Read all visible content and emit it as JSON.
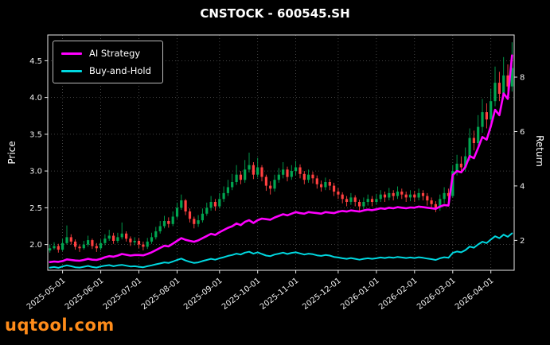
{
  "title": "CNSTOCK - 600545.SH",
  "watermark": "uqtool.com",
  "chart_data": {
    "type": "candlestick+line",
    "title": "CNSTOCK - 600545.SH",
    "background": "#000000",
    "legend_position": "upper-left",
    "axes": {
      "left_label": "Price",
      "right_label": "Return",
      "left_ylim": [
        1.65,
        4.85
      ],
      "right_ylim": [
        0.9,
        9.55
      ],
      "left_tick_values": [
        2.0,
        2.5,
        3.0,
        3.5,
        4.0,
        4.5
      ],
      "left_tick_labels": [
        "2.0",
        "2.5",
        "3.0",
        "3.5",
        "4.0",
        "4.5"
      ],
      "right_tick_values": [
        2,
        4,
        6,
        8
      ],
      "right_tick_labels": [
        "2",
        "4",
        "6",
        "8"
      ],
      "x_tick_labels": [
        "2025-05-01",
        "2025-06-01",
        "2025-07-01",
        "2025-08-01",
        "2025-09-01",
        "2025-10-01",
        "2025-11-01",
        "2025-12-01",
        "2026-01-01",
        "2026-02-01",
        "2026-03-01",
        "2026-04-01"
      ],
      "x_tick_indices": [
        3,
        12,
        21,
        30,
        40,
        49,
        58,
        68,
        77,
        86,
        95,
        104
      ],
      "grid": true
    },
    "n": 110,
    "candles": {
      "up_color": "#00a651",
      "down_color": "#ff4040",
      "open_rule": "previous_close",
      "first_open": 1.92,
      "closes": [
        1.95,
        1.98,
        1.93,
        2.02,
        2.1,
        2.04,
        1.97,
        1.95,
        2.0,
        2.06,
        1.98,
        1.95,
        2.02,
        2.08,
        2.12,
        2.05,
        2.1,
        2.15,
        2.08,
        2.03,
        2.05,
        2.0,
        1.97,
        2.04,
        2.1,
        2.18,
        2.25,
        2.32,
        2.28,
        2.38,
        2.5,
        2.6,
        2.45,
        2.35,
        2.28,
        2.33,
        2.42,
        2.5,
        2.58,
        2.52,
        2.62,
        2.7,
        2.78,
        2.85,
        2.95,
        2.88,
        3.02,
        3.08,
        2.95,
        3.05,
        2.92,
        2.8,
        2.76,
        2.88,
        2.95,
        3.02,
        2.92,
        3.0,
        3.05,
        2.96,
        2.88,
        2.95,
        2.9,
        2.82,
        2.78,
        2.85,
        2.8,
        2.72,
        2.68,
        2.62,
        2.58,
        2.64,
        2.58,
        2.52,
        2.58,
        2.62,
        2.58,
        2.62,
        2.68,
        2.64,
        2.7,
        2.66,
        2.72,
        2.68,
        2.64,
        2.68,
        2.64,
        2.7,
        2.66,
        2.6,
        2.55,
        2.5,
        2.62,
        2.7,
        2.66,
        3.0,
        3.1,
        3.05,
        3.2,
        3.45,
        3.38,
        3.6,
        3.8,
        3.7,
        3.95,
        4.2,
        4.05,
        4.3,
        4.15,
        4.4
      ],
      "highs": [
        2.0,
        2.03,
        2.01,
        2.08,
        2.26,
        2.14,
        2.07,
        2.0,
        2.05,
        2.12,
        2.08,
        2.02,
        2.07,
        2.14,
        2.2,
        2.16,
        2.16,
        2.3,
        2.18,
        2.11,
        2.1,
        2.09,
        2.04,
        2.09,
        2.16,
        2.24,
        2.32,
        2.39,
        2.37,
        2.45,
        2.57,
        2.68,
        2.62,
        2.49,
        2.38,
        2.4,
        2.49,
        2.57,
        2.66,
        2.62,
        2.7,
        2.79,
        2.88,
        2.96,
        3.08,
        3.0,
        3.15,
        3.25,
        3.12,
        3.18,
        3.08,
        2.95,
        2.86,
        2.95,
        3.04,
        3.12,
        3.06,
        3.08,
        3.14,
        3.09,
        3.0,
        3.02,
        2.99,
        2.94,
        2.87,
        2.91,
        2.89,
        2.84,
        2.77,
        2.71,
        2.66,
        2.7,
        2.67,
        2.61,
        2.64,
        2.68,
        2.66,
        2.69,
        2.74,
        2.72,
        2.77,
        2.74,
        2.79,
        2.76,
        2.72,
        2.74,
        2.73,
        2.76,
        2.74,
        2.7,
        2.64,
        2.59,
        2.68,
        2.78,
        2.76,
        3.08,
        3.22,
        3.2,
        3.32,
        3.58,
        3.55,
        3.76,
        3.98,
        3.92,
        4.12,
        4.42,
        4.35,
        4.55,
        4.45,
        4.75
      ],
      "lows": [
        1.89,
        1.93,
        1.89,
        1.91,
        2.0,
        2.0,
        1.93,
        1.9,
        1.93,
        1.97,
        1.94,
        1.9,
        1.92,
        1.99,
        2.05,
        2.01,
        2.02,
        2.07,
        2.04,
        1.98,
        1.99,
        1.95,
        1.92,
        1.94,
        2.01,
        2.07,
        2.15,
        2.22,
        2.23,
        2.25,
        2.35,
        2.47,
        2.4,
        2.3,
        2.22,
        2.24,
        2.3,
        2.39,
        2.46,
        2.46,
        2.49,
        2.58,
        2.66,
        2.74,
        2.81,
        2.82,
        2.84,
        2.98,
        2.89,
        2.91,
        2.86,
        2.73,
        2.68,
        2.72,
        2.84,
        2.9,
        2.86,
        2.88,
        2.94,
        2.9,
        2.82,
        2.84,
        2.83,
        2.76,
        2.72,
        2.74,
        2.74,
        2.66,
        2.62,
        2.56,
        2.52,
        2.54,
        2.52,
        2.46,
        2.48,
        2.53,
        2.52,
        2.54,
        2.58,
        2.58,
        2.6,
        2.6,
        2.62,
        2.62,
        2.58,
        2.59,
        2.58,
        2.6,
        2.6,
        2.53,
        2.48,
        2.44,
        2.46,
        2.56,
        2.6,
        2.64,
        2.94,
        2.97,
        2.99,
        3.14,
        3.28,
        3.32,
        3.52,
        3.58,
        3.62,
        3.88,
        3.95,
        3.98,
        4.02,
        4.08
      ]
    },
    "series": [
      {
        "name": "AI Strategy",
        "axis": "right",
        "color": "#ff00ff",
        "width": 2.6,
        "values": [
          1.2,
          1.22,
          1.21,
          1.24,
          1.3,
          1.28,
          1.26,
          1.25,
          1.28,
          1.32,
          1.29,
          1.28,
          1.32,
          1.38,
          1.42,
          1.4,
          1.44,
          1.5,
          1.47,
          1.44,
          1.46,
          1.46,
          1.45,
          1.5,
          1.56,
          1.64,
          1.72,
          1.8,
          1.78,
          1.88,
          1.98,
          2.08,
          2.02,
          1.98,
          1.95,
          2.0,
          2.08,
          2.16,
          2.24,
          2.2,
          2.3,
          2.38,
          2.46,
          2.52,
          2.62,
          2.56,
          2.68,
          2.74,
          2.64,
          2.74,
          2.8,
          2.78,
          2.76,
          2.84,
          2.9,
          2.96,
          2.92,
          2.98,
          3.04,
          3.0,
          2.98,
          3.04,
          3.02,
          3.0,
          2.98,
          3.04,
          3.02,
          3.0,
          3.05,
          3.08,
          3.06,
          3.1,
          3.08,
          3.06,
          3.1,
          3.13,
          3.11,
          3.14,
          3.18,
          3.16,
          3.2,
          3.18,
          3.22,
          3.2,
          3.18,
          3.21,
          3.2,
          3.24,
          3.22,
          3.2,
          3.18,
          3.16,
          3.24,
          3.3,
          3.28,
          4.4,
          4.55,
          4.5,
          4.7,
          5.1,
          5.02,
          5.4,
          5.8,
          5.7,
          6.2,
          6.8,
          6.6,
          7.4,
          7.2,
          8.8
        ]
      },
      {
        "name": "Buy-and-Hold",
        "axis": "right",
        "color": "#00d8e0",
        "width": 2,
        "values": [
          1.0,
          1.02,
          0.99,
          1.04,
          1.08,
          1.05,
          1.01,
          1.0,
          1.03,
          1.06,
          1.02,
          1.0,
          1.04,
          1.07,
          1.09,
          1.05,
          1.08,
          1.1,
          1.07,
          1.04,
          1.05,
          1.03,
          1.01,
          1.05,
          1.08,
          1.12,
          1.15,
          1.19,
          1.17,
          1.22,
          1.28,
          1.33,
          1.26,
          1.21,
          1.17,
          1.19,
          1.24,
          1.28,
          1.32,
          1.29,
          1.34,
          1.38,
          1.43,
          1.46,
          1.51,
          1.48,
          1.55,
          1.58,
          1.51,
          1.56,
          1.5,
          1.44,
          1.42,
          1.48,
          1.51,
          1.55,
          1.5,
          1.54,
          1.56,
          1.52,
          1.48,
          1.51,
          1.49,
          1.45,
          1.43,
          1.46,
          1.44,
          1.39,
          1.37,
          1.34,
          1.32,
          1.35,
          1.32,
          1.29,
          1.32,
          1.34,
          1.32,
          1.34,
          1.37,
          1.35,
          1.38,
          1.36,
          1.39,
          1.37,
          1.35,
          1.37,
          1.35,
          1.38,
          1.36,
          1.33,
          1.31,
          1.28,
          1.34,
          1.38,
          1.36,
          1.54,
          1.59,
          1.56,
          1.64,
          1.77,
          1.73,
          1.85,
          1.95,
          1.9,
          2.03,
          2.15,
          2.08,
          2.21,
          2.13,
          2.26
        ]
      }
    ]
  }
}
